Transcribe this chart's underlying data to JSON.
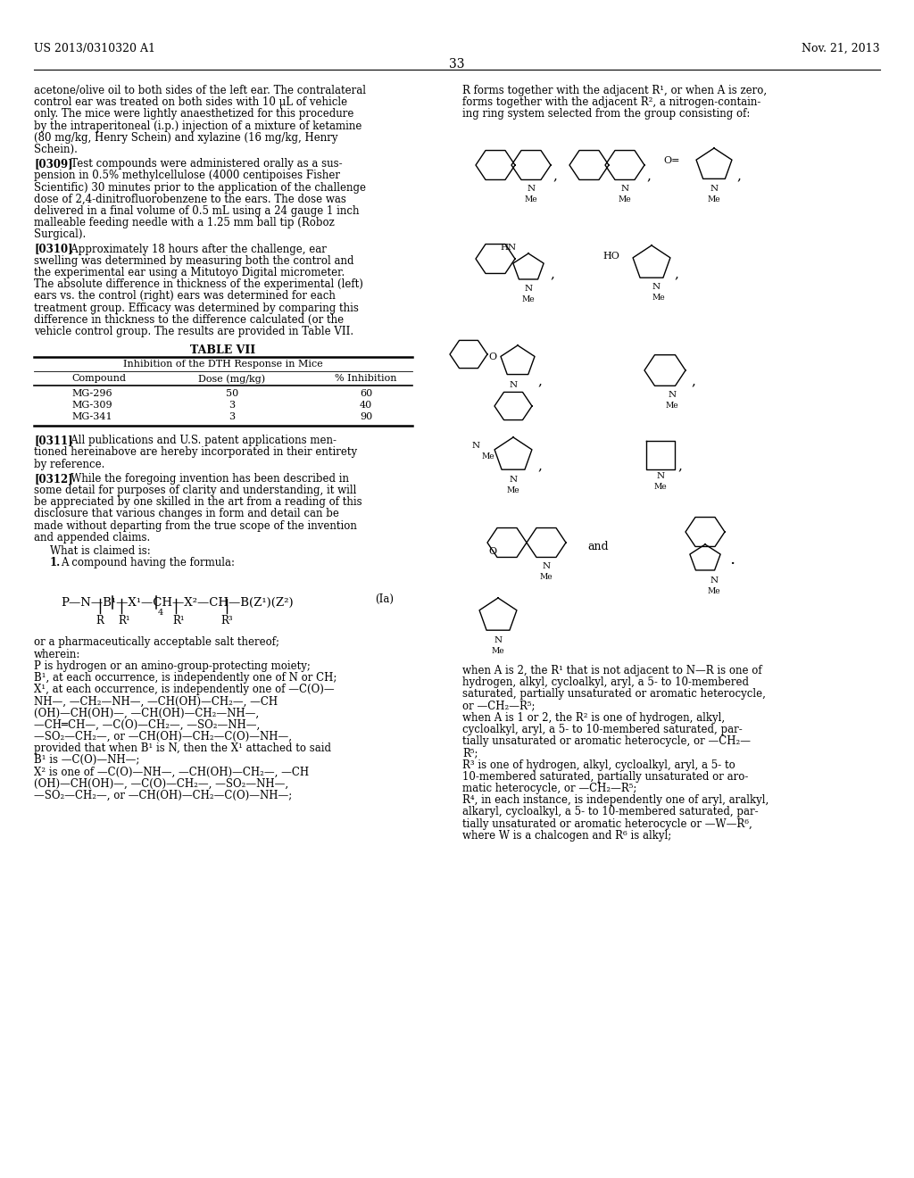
{
  "header_left": "US 2013/0310320 A1",
  "header_right": "Nov. 21, 2013",
  "page_number": "33",
  "background_color": "#ffffff",
  "text_color": "#000000"
}
